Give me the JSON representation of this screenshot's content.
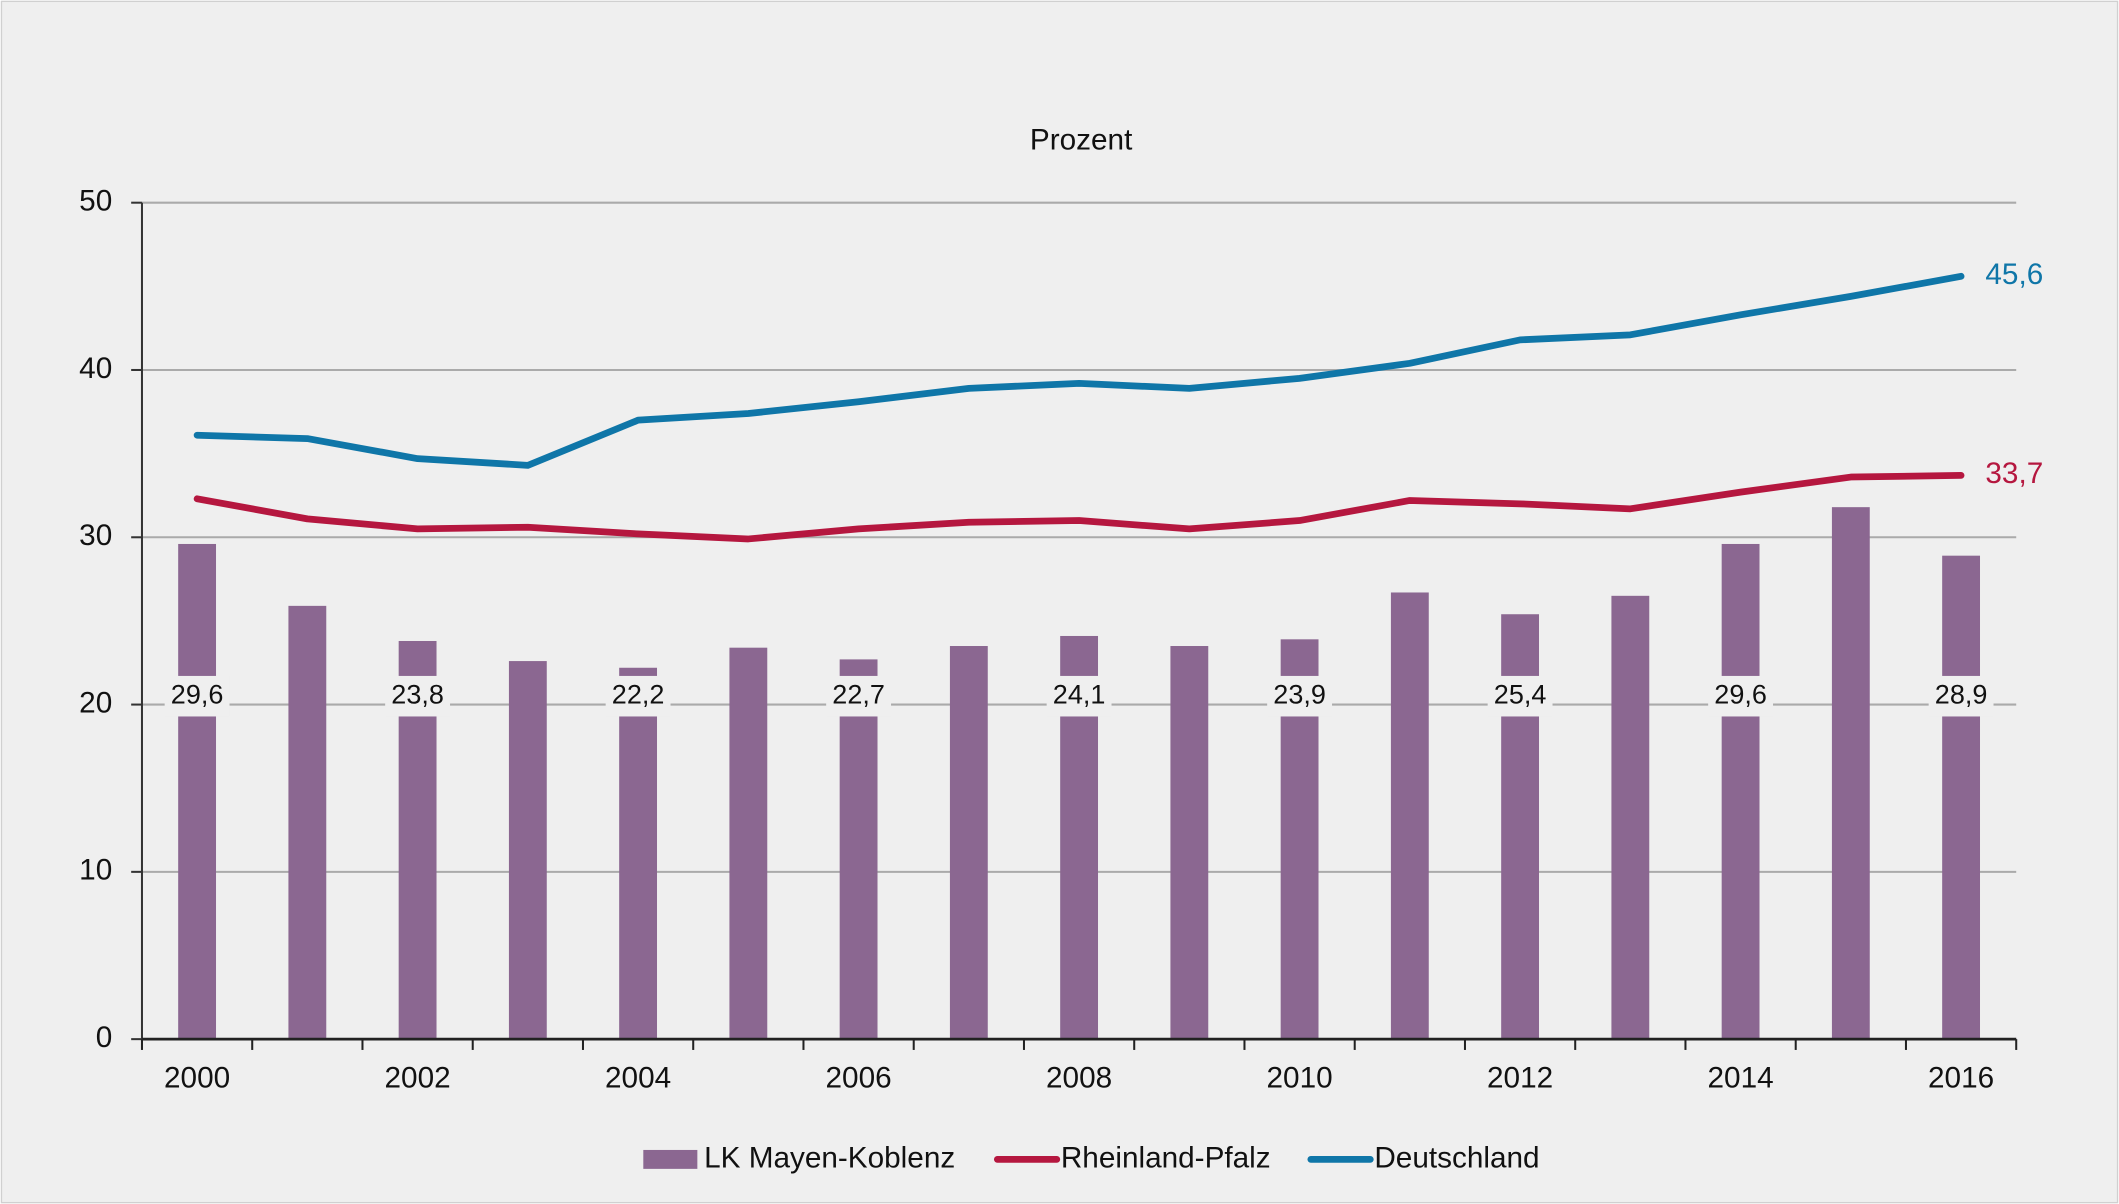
{
  "chart_data": {
    "type": "bar_line",
    "title": "Prozent",
    "categories": [
      "2000",
      null,
      "2002",
      null,
      "2004",
      null,
      "2006",
      null,
      "2008",
      null,
      "2010",
      null,
      "2012",
      null,
      "2014",
      null,
      "2016"
    ],
    "series": [
      {
        "name": "LK Mayen-Koblenz",
        "type": "bar",
        "color": "#8b6791",
        "values": [
          29.6,
          25.9,
          23.8,
          22.6,
          22.2,
          23.4,
          22.7,
          23.5,
          24.1,
          23.5,
          23.9,
          26.7,
          25.4,
          26.5,
          29.6,
          31.8,
          28.9
        ],
        "value_labels": [
          "29,6",
          null,
          "23,8",
          null,
          "22,2",
          null,
          "22,7",
          null,
          "24,1",
          null,
          "23,9",
          null,
          "25,4",
          null,
          "29,6",
          null,
          "28,9"
        ]
      },
      {
        "name": "Rheinland-Pfalz",
        "type": "line",
        "color": "#b5173f",
        "values": [
          32.3,
          31.1,
          30.5,
          30.6,
          30.2,
          29.9,
          30.5,
          30.9,
          31.0,
          30.5,
          31.0,
          32.2,
          32.0,
          31.7,
          32.7,
          33.6,
          33.7
        ],
        "value_labels": [
          null,
          null,
          null,
          null,
          null,
          null,
          null,
          null,
          null,
          null,
          null,
          null,
          null,
          null,
          null,
          null,
          "33,7"
        ]
      },
      {
        "name": "Deutschland",
        "type": "line",
        "color": "#0f76a8",
        "values": [
          36.1,
          35.9,
          34.7,
          34.3,
          37.0,
          37.4,
          38.1,
          38.9,
          39.2,
          38.9,
          39.5,
          40.4,
          41.8,
          42.1,
          43.3,
          44.4,
          45.6
        ],
        "value_labels": [
          null,
          null,
          null,
          null,
          null,
          null,
          null,
          null,
          null,
          null,
          null,
          null,
          null,
          null,
          null,
          null,
          "45,6"
        ]
      }
    ],
    "ylim": [
      0,
      50
    ],
    "yticks": [
      0,
      10,
      20,
      30,
      40,
      50
    ],
    "grid": true,
    "legend": "bottom"
  }
}
